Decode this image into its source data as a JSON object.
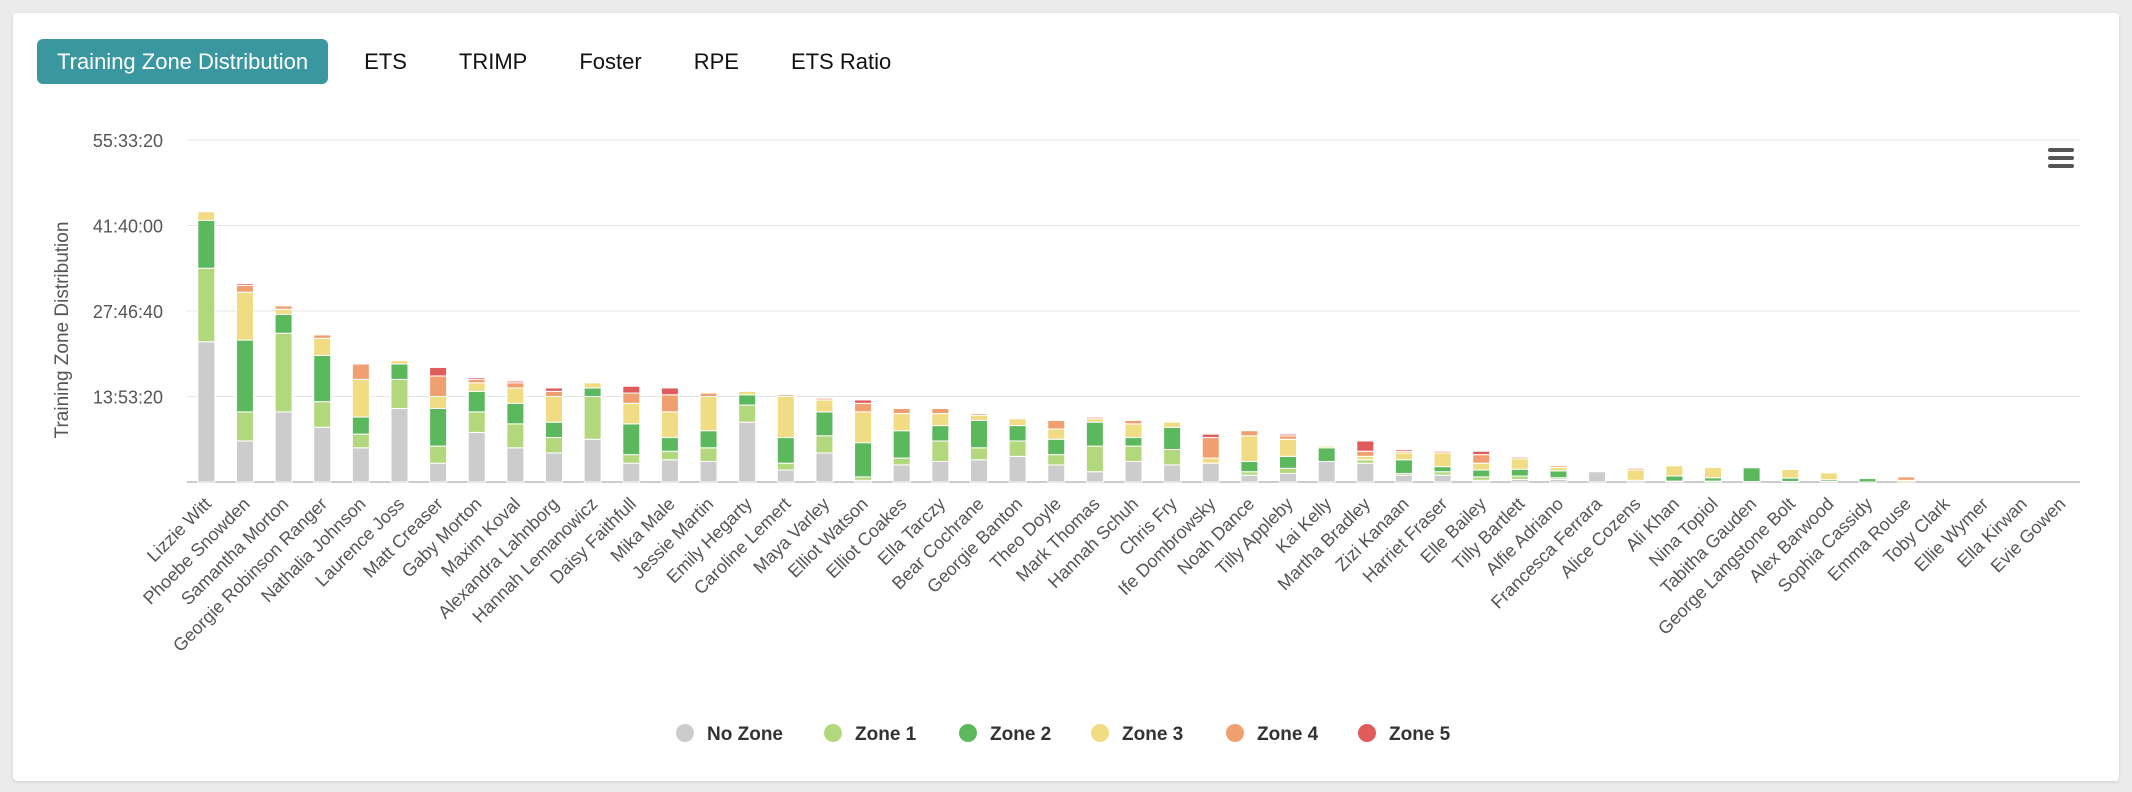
{
  "tabs": [
    {
      "label": "Training Zone Distribution",
      "active": true
    },
    {
      "label": "ETS",
      "active": false
    },
    {
      "label": "TRIMP",
      "active": false
    },
    {
      "label": "Foster",
      "active": false
    },
    {
      "label": "RPE",
      "active": false
    },
    {
      "label": "ETS Ratio",
      "active": false
    }
  ],
  "menu_icon": "hamburger-menu-icon",
  "chart_data": {
    "type": "bar",
    "stacked": true,
    "ylabel": "Training Zone Distribution",
    "y_ticks": [
      "55:33:20",
      "41:40:00",
      "27:46:40",
      "13:53:20"
    ],
    "ylim_seconds": [
      0,
      200000
    ],
    "legend_position": "bottom",
    "categories": [
      "Lizzie Witt",
      "Phoebe Snowden",
      "Samantha Morton",
      "Georgie Robinson Ranger",
      "Nathalia Johnson",
      "Laurence Joss",
      "Matt Creaser",
      "Gaby Morton",
      "Maxim Koval",
      "Alexandra Lahnborg",
      "Hannah Lemanowicz",
      "Daisy Faithfull",
      "Mika Male",
      "Jessie Martin",
      "Emily Hegarty",
      "Caroline Lemert",
      "Maya Varley",
      "Elliot Watson",
      "Elliot Coakes",
      "Ella Tarczy",
      "Bear Cochrane",
      "Georgie Banton",
      "Theo Doyle",
      "Mark Thomas",
      "Hannah Schuh",
      "Chris Fry",
      "Ife Dombrowsky",
      "Noah Dance",
      "Tilly Appleby",
      "Kai Kelly",
      "Martha Bradley",
      "Zizi Kanaan",
      "Harriet Fraser",
      "Elle Bailey",
      "Tilly Bartlett",
      "Alfie Adriano",
      "Francesca Ferrara",
      "Alice Cozens",
      "Ali Khan",
      "Nina Topiol",
      "Tabitha Gauden",
      "George Langstone Bolt",
      "Alex Barwood",
      "Sophia Cassidy",
      "Emma Rouse",
      "Toby Clark",
      "Ellie Wymer",
      "Ella Kirwan",
      "Evie Gowen"
    ],
    "series": [
      {
        "name": "No Zone",
        "color": "#cccccc",
        "values": [
          82000,
          24000,
          41000,
          32000,
          20000,
          43000,
          11000,
          29000,
          20000,
          17000,
          25000,
          11000,
          13000,
          12000,
          35000,
          7000,
          17000,
          1000,
          10000,
          12000,
          13000,
          15000,
          10000,
          6000,
          12000,
          10000,
          11000,
          4000,
          5000,
          12000,
          11000,
          4000,
          4000,
          1000,
          1500,
          1500,
          6000,
          1000,
          500,
          500,
          300,
          300,
          300,
          0,
          0,
          0,
          0,
          0,
          0
        ]
      },
      {
        "name": "Zone 1",
        "color": "#b3d77d",
        "values": [
          43000,
          17000,
          46000,
          15000,
          8000,
          17000,
          10000,
          12000,
          14000,
          9000,
          25000,
          5000,
          5000,
          8000,
          10000,
          4000,
          10000,
          2000,
          4000,
          12000,
          7000,
          9000,
          6000,
          15000,
          9000,
          9000,
          0,
          2000,
          3000,
          0,
          2000,
          1000,
          2000,
          2000,
          2000,
          1000,
          0,
          0,
          0,
          0,
          0,
          0,
          0,
          0,
          0,
          0,
          0,
          0,
          0
        ]
      },
      {
        "name": "Zone 2",
        "color": "#5cb85c",
        "values": [
          28000,
          42000,
          11000,
          27000,
          10000,
          9000,
          22000,
          12000,
          12000,
          9000,
          5000,
          18000,
          8000,
          10000,
          6000,
          15000,
          14000,
          20000,
          16000,
          9000,
          16000,
          9000,
          9000,
          14000,
          5000,
          13000,
          0,
          6000,
          7000,
          8000,
          0,
          8000,
          3000,
          4000,
          4000,
          4000,
          0,
          0,
          3000,
          2000,
          8000,
          2000,
          1000,
          2000,
          0,
          0,
          0,
          0,
          0
        ]
      },
      {
        "name": "Zone 3",
        "color": "#f0dc82",
        "values": [
          5000,
          28000,
          3000,
          10000,
          22000,
          2000,
          7000,
          5000,
          9000,
          15000,
          3000,
          12000,
          15000,
          20000,
          2000,
          24000,
          7000,
          18000,
          10000,
          7000,
          3000,
          4000,
          6000,
          2000,
          8000,
          3000,
          3000,
          15000,
          10000,
          1000,
          2000,
          4000,
          8000,
          4000,
          6000,
          2000,
          0,
          6000,
          6000,
          6000,
          0,
          5000,
          4000,
          0,
          1000,
          0,
          0,
          0,
          0
        ]
      },
      {
        "name": "Zone 4",
        "color": "#f0a070",
        "values": [
          0,
          4000,
          2000,
          2000,
          9000,
          0,
          12000,
          2000,
          3000,
          3000,
          0,
          6000,
          10000,
          2000,
          0,
          1000,
          1000,
          5000,
          3000,
          3000,
          1000,
          0,
          5000,
          1000,
          2000,
          0,
          12000,
          3000,
          2000,
          0,
          3000,
          1000,
          1000,
          5000,
          1000,
          1000,
          0,
          1000,
          0,
          0,
          0,
          0,
          0,
          0,
          2000,
          0,
          0,
          0,
          0
        ]
      },
      {
        "name": "Zone 5",
        "color": "#e05c5c",
        "values": [
          0,
          1000,
          0,
          0,
          0,
          0,
          5000,
          1000,
          1000,
          2000,
          0,
          4000,
          4000,
          0,
          0,
          0,
          0,
          2000,
          0,
          0,
          0,
          0,
          0,
          0,
          0,
          0,
          2000,
          0,
          1000,
          0,
          6000,
          1000,
          0,
          2000,
          0,
          0,
          0,
          0,
          0,
          0,
          0,
          0,
          0,
          0,
          0,
          0,
          0,
          0,
          0
        ]
      }
    ]
  }
}
